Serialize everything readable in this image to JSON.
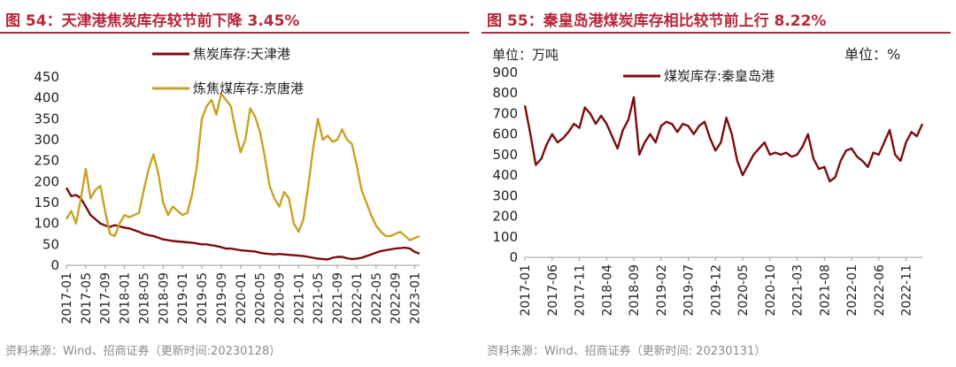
{
  "left": {
    "title": "图 54：天津港焦炭库存较节前下降 3.45%",
    "source": "资料来源：Wind、招商证券（更新时间:20230128）"
  },
  "right": {
    "title": "图 55：秦皇岛港煤炭库存相比较节前上行 8.22%",
    "source": "资料来源：Wind、招商证券（更新时间: 20230131）"
  },
  "chart_data": [
    {
      "type": "line",
      "title": "天津港焦炭库存较节前下降 3.45%",
      "ylim": [
        0,
        450
      ],
      "yticks": [
        "0",
        "50",
        "100",
        "150",
        "200",
        "250",
        "300",
        "350",
        "400",
        "450"
      ],
      "x_range": [
        "2017-01",
        "2023-02"
      ],
      "xticks": [
        "2017-01",
        "2017-05",
        "2017-09",
        "2018-01",
        "2018-05",
        "2018-09",
        "2019-01",
        "2019-05",
        "2019-09",
        "2020-01",
        "2020-05",
        "2020-09",
        "2021-01",
        "2021-05",
        "2021-09",
        "2022-01",
        "2022-05",
        "2022-09",
        "2023-01"
      ],
      "legend_position": "top",
      "series": [
        {
          "name": "焦炭库存:天津港",
          "color": "#7b0c0c",
          "points": [
            [
              "2017-01",
              185
            ],
            [
              "2017-02",
              165
            ],
            [
              "2017-03",
              168
            ],
            [
              "2017-04",
              160
            ],
            [
              "2017-05",
              140
            ],
            [
              "2017-06",
              120
            ],
            [
              "2017-07",
              110
            ],
            [
              "2017-08",
              100
            ],
            [
              "2017-09",
              95
            ],
            [
              "2017-10",
              92
            ],
            [
              "2017-11",
              96
            ],
            [
              "2017-12",
              93
            ],
            [
              "2018-01",
              90
            ],
            [
              "2018-02",
              88
            ],
            [
              "2018-03",
              84
            ],
            [
              "2018-04",
              80
            ],
            [
              "2018-05",
              75
            ],
            [
              "2018-06",
              72
            ],
            [
              "2018-07",
              70
            ],
            [
              "2018-08",
              66
            ],
            [
              "2018-09",
              62
            ],
            [
              "2018-10",
              60
            ],
            [
              "2018-11",
              58
            ],
            [
              "2018-12",
              57
            ],
            [
              "2019-01",
              56
            ],
            [
              "2019-02",
              55
            ],
            [
              "2019-03",
              54
            ],
            [
              "2019-04",
              52
            ],
            [
              "2019-05",
              50
            ],
            [
              "2019-06",
              50
            ],
            [
              "2019-07",
              48
            ],
            [
              "2019-08",
              46
            ],
            [
              "2019-09",
              43
            ],
            [
              "2019-10",
              40
            ],
            [
              "2019-11",
              40
            ],
            [
              "2019-12",
              38
            ],
            [
              "2020-01",
              36
            ],
            [
              "2020-02",
              35
            ],
            [
              "2020-03",
              34
            ],
            [
              "2020-04",
              33
            ],
            [
              "2020-05",
              30
            ],
            [
              "2020-06",
              28
            ],
            [
              "2020-07",
              27
            ],
            [
              "2020-08",
              26
            ],
            [
              "2020-09",
              27
            ],
            [
              "2020-10",
              26
            ],
            [
              "2020-11",
              25
            ],
            [
              "2020-12",
              24
            ],
            [
              "2021-01",
              23
            ],
            [
              "2021-02",
              22
            ],
            [
              "2021-03",
              20
            ],
            [
              "2021-04",
              18
            ],
            [
              "2021-05",
              16
            ],
            [
              "2021-06",
              15
            ],
            [
              "2021-07",
              14
            ],
            [
              "2021-08",
              18
            ],
            [
              "2021-09",
              20
            ],
            [
              "2021-10",
              20
            ],
            [
              "2021-11",
              17
            ],
            [
              "2021-12",
              15
            ],
            [
              "2022-01",
              16
            ],
            [
              "2022-02",
              18
            ],
            [
              "2022-03",
              22
            ],
            [
              "2022-04",
              26
            ],
            [
              "2022-05",
              30
            ],
            [
              "2022-06",
              34
            ],
            [
              "2022-07",
              36
            ],
            [
              "2022-08",
              38
            ],
            [
              "2022-09",
              40
            ],
            [
              "2022-10",
              41
            ],
            [
              "2022-11",
              42
            ],
            [
              "2022-12",
              40
            ],
            [
              "2023-01",
              32
            ],
            [
              "2023-02",
              28
            ]
          ]
        },
        {
          "name": "炼焦煤库存:京唐港",
          "color": "#c9a223",
          "points": [
            [
              "2017-01",
              110
            ],
            [
              "2017-02",
              130
            ],
            [
              "2017-03",
              100
            ],
            [
              "2017-04",
              160
            ],
            [
              "2017-05",
              230
            ],
            [
              "2017-06",
              160
            ],
            [
              "2017-07",
              180
            ],
            [
              "2017-08",
              190
            ],
            [
              "2017-09",
              130
            ],
            [
              "2017-10",
              75
            ],
            [
              "2017-11",
              70
            ],
            [
              "2017-12",
              100
            ],
            [
              "2018-01",
              120
            ],
            [
              "2018-02",
              115
            ],
            [
              "2018-03",
              120
            ],
            [
              "2018-04",
              125
            ],
            [
              "2018-05",
              180
            ],
            [
              "2018-06",
              230
            ],
            [
              "2018-07",
              265
            ],
            [
              "2018-08",
              220
            ],
            [
              "2018-09",
              150
            ],
            [
              "2018-10",
              120
            ],
            [
              "2018-11",
              140
            ],
            [
              "2018-12",
              130
            ],
            [
              "2019-01",
              120
            ],
            [
              "2019-02",
              125
            ],
            [
              "2019-03",
              170
            ],
            [
              "2019-04",
              240
            ],
            [
              "2019-05",
              350
            ],
            [
              "2019-06",
              380
            ],
            [
              "2019-07",
              395
            ],
            [
              "2019-08",
              360
            ],
            [
              "2019-09",
              410
            ],
            [
              "2019-10",
              395
            ],
            [
              "2019-11",
              380
            ],
            [
              "2019-12",
              320
            ],
            [
              "2020-01",
              270
            ],
            [
              "2020-02",
              300
            ],
            [
              "2020-03",
              375
            ],
            [
              "2020-04",
              355
            ],
            [
              "2020-05",
              320
            ],
            [
              "2020-06",
              260
            ],
            [
              "2020-07",
              190
            ],
            [
              "2020-08",
              160
            ],
            [
              "2020-09",
              140
            ],
            [
              "2020-10",
              175
            ],
            [
              "2020-11",
              160
            ],
            [
              "2020-12",
              100
            ],
            [
              "2021-01",
              80
            ],
            [
              "2021-02",
              110
            ],
            [
              "2021-03",
              190
            ],
            [
              "2021-04",
              280
            ],
            [
              "2021-05",
              350
            ],
            [
              "2021-06",
              300
            ],
            [
              "2021-07",
              310
            ],
            [
              "2021-08",
              295
            ],
            [
              "2021-09",
              300
            ],
            [
              "2021-10",
              325
            ],
            [
              "2021-11",
              300
            ],
            [
              "2021-12",
              290
            ],
            [
              "2022-01",
              240
            ],
            [
              "2022-02",
              180
            ],
            [
              "2022-03",
              150
            ],
            [
              "2022-04",
              120
            ],
            [
              "2022-05",
              95
            ],
            [
              "2022-06",
              80
            ],
            [
              "2022-07",
              70
            ],
            [
              "2022-08",
              70
            ],
            [
              "2022-09",
              75
            ],
            [
              "2022-10",
              80
            ],
            [
              "2022-11",
              70
            ],
            [
              "2022-12",
              60
            ],
            [
              "2023-01",
              65
            ],
            [
              "2023-02",
              70
            ]
          ]
        }
      ]
    },
    {
      "type": "line",
      "title": "秦皇岛港煤炭库存相比较节前上行 8.22%",
      "ylabel_left": "单位：万吨",
      "ylabel_right": "单位：%",
      "ylim": [
        0,
        900
      ],
      "yticks": [
        "0",
        "100",
        "200",
        "300",
        "400",
        "500",
        "600",
        "700",
        "800",
        "900"
      ],
      "x_range": [
        "2017-01",
        "2023-02"
      ],
      "xticks": [
        "2017-01",
        "2017-06",
        "2017-11",
        "2018-04",
        "2018-09",
        "2019-02",
        "2019-07",
        "2019-12",
        "2020-05",
        "2020-10",
        "2021-03",
        "2021-08",
        "2022-01",
        "2022-06",
        "2022-11"
      ],
      "legend_position": "top",
      "series": [
        {
          "name": "煤炭库存:秦皇岛港",
          "color": "#7b0c0c",
          "points": [
            [
              "2017-01",
              740
            ],
            [
              "2017-02",
              600
            ],
            [
              "2017-03",
              450
            ],
            [
              "2017-04",
              480
            ],
            [
              "2017-05",
              550
            ],
            [
              "2017-06",
              600
            ],
            [
              "2017-07",
              560
            ],
            [
              "2017-08",
              580
            ],
            [
              "2017-09",
              610
            ],
            [
              "2017-10",
              650
            ],
            [
              "2017-11",
              630
            ],
            [
              "2017-12",
              730
            ],
            [
              "2018-01",
              700
            ],
            [
              "2018-02",
              650
            ],
            [
              "2018-03",
              690
            ],
            [
              "2018-04",
              650
            ],
            [
              "2018-05",
              590
            ],
            [
              "2018-06",
              530
            ],
            [
              "2018-07",
              620
            ],
            [
              "2018-08",
              670
            ],
            [
              "2018-09",
              780
            ],
            [
              "2018-10",
              500
            ],
            [
              "2018-11",
              560
            ],
            [
              "2018-12",
              600
            ],
            [
              "2019-01",
              560
            ],
            [
              "2019-02",
              640
            ],
            [
              "2019-03",
              660
            ],
            [
              "2019-04",
              650
            ],
            [
              "2019-05",
              610
            ],
            [
              "2019-06",
              650
            ],
            [
              "2019-07",
              640
            ],
            [
              "2019-08",
              600
            ],
            [
              "2019-09",
              640
            ],
            [
              "2019-10",
              660
            ],
            [
              "2019-11",
              580
            ],
            [
              "2019-12",
              520
            ],
            [
              "2020-01",
              560
            ],
            [
              "2020-02",
              680
            ],
            [
              "2020-03",
              600
            ],
            [
              "2020-04",
              470
            ],
            [
              "2020-05",
              400
            ],
            [
              "2020-06",
              450
            ],
            [
              "2020-07",
              500
            ],
            [
              "2020-08",
              530
            ],
            [
              "2020-09",
              560
            ],
            [
              "2020-10",
              500
            ],
            [
              "2020-11",
              510
            ],
            [
              "2020-12",
              500
            ],
            [
              "2021-01",
              510
            ],
            [
              "2021-02",
              490
            ],
            [
              "2021-03",
              500
            ],
            [
              "2021-04",
              540
            ],
            [
              "2021-05",
              600
            ],
            [
              "2021-06",
              480
            ],
            [
              "2021-07",
              430
            ],
            [
              "2021-08",
              440
            ],
            [
              "2021-09",
              370
            ],
            [
              "2021-10",
              390
            ],
            [
              "2021-11",
              470
            ],
            [
              "2021-12",
              520
            ],
            [
              "2022-01",
              530
            ],
            [
              "2022-02",
              490
            ],
            [
              "2022-03",
              470
            ],
            [
              "2022-04",
              440
            ],
            [
              "2022-05",
              510
            ],
            [
              "2022-06",
              500
            ],
            [
              "2022-07",
              560
            ],
            [
              "2022-08",
              620
            ],
            [
              "2022-09",
              500
            ],
            [
              "2022-10",
              470
            ],
            [
              "2022-11",
              560
            ],
            [
              "2022-12",
              610
            ],
            [
              "2023-01",
              590
            ],
            [
              "2023-02",
              650
            ]
          ]
        }
      ]
    }
  ]
}
